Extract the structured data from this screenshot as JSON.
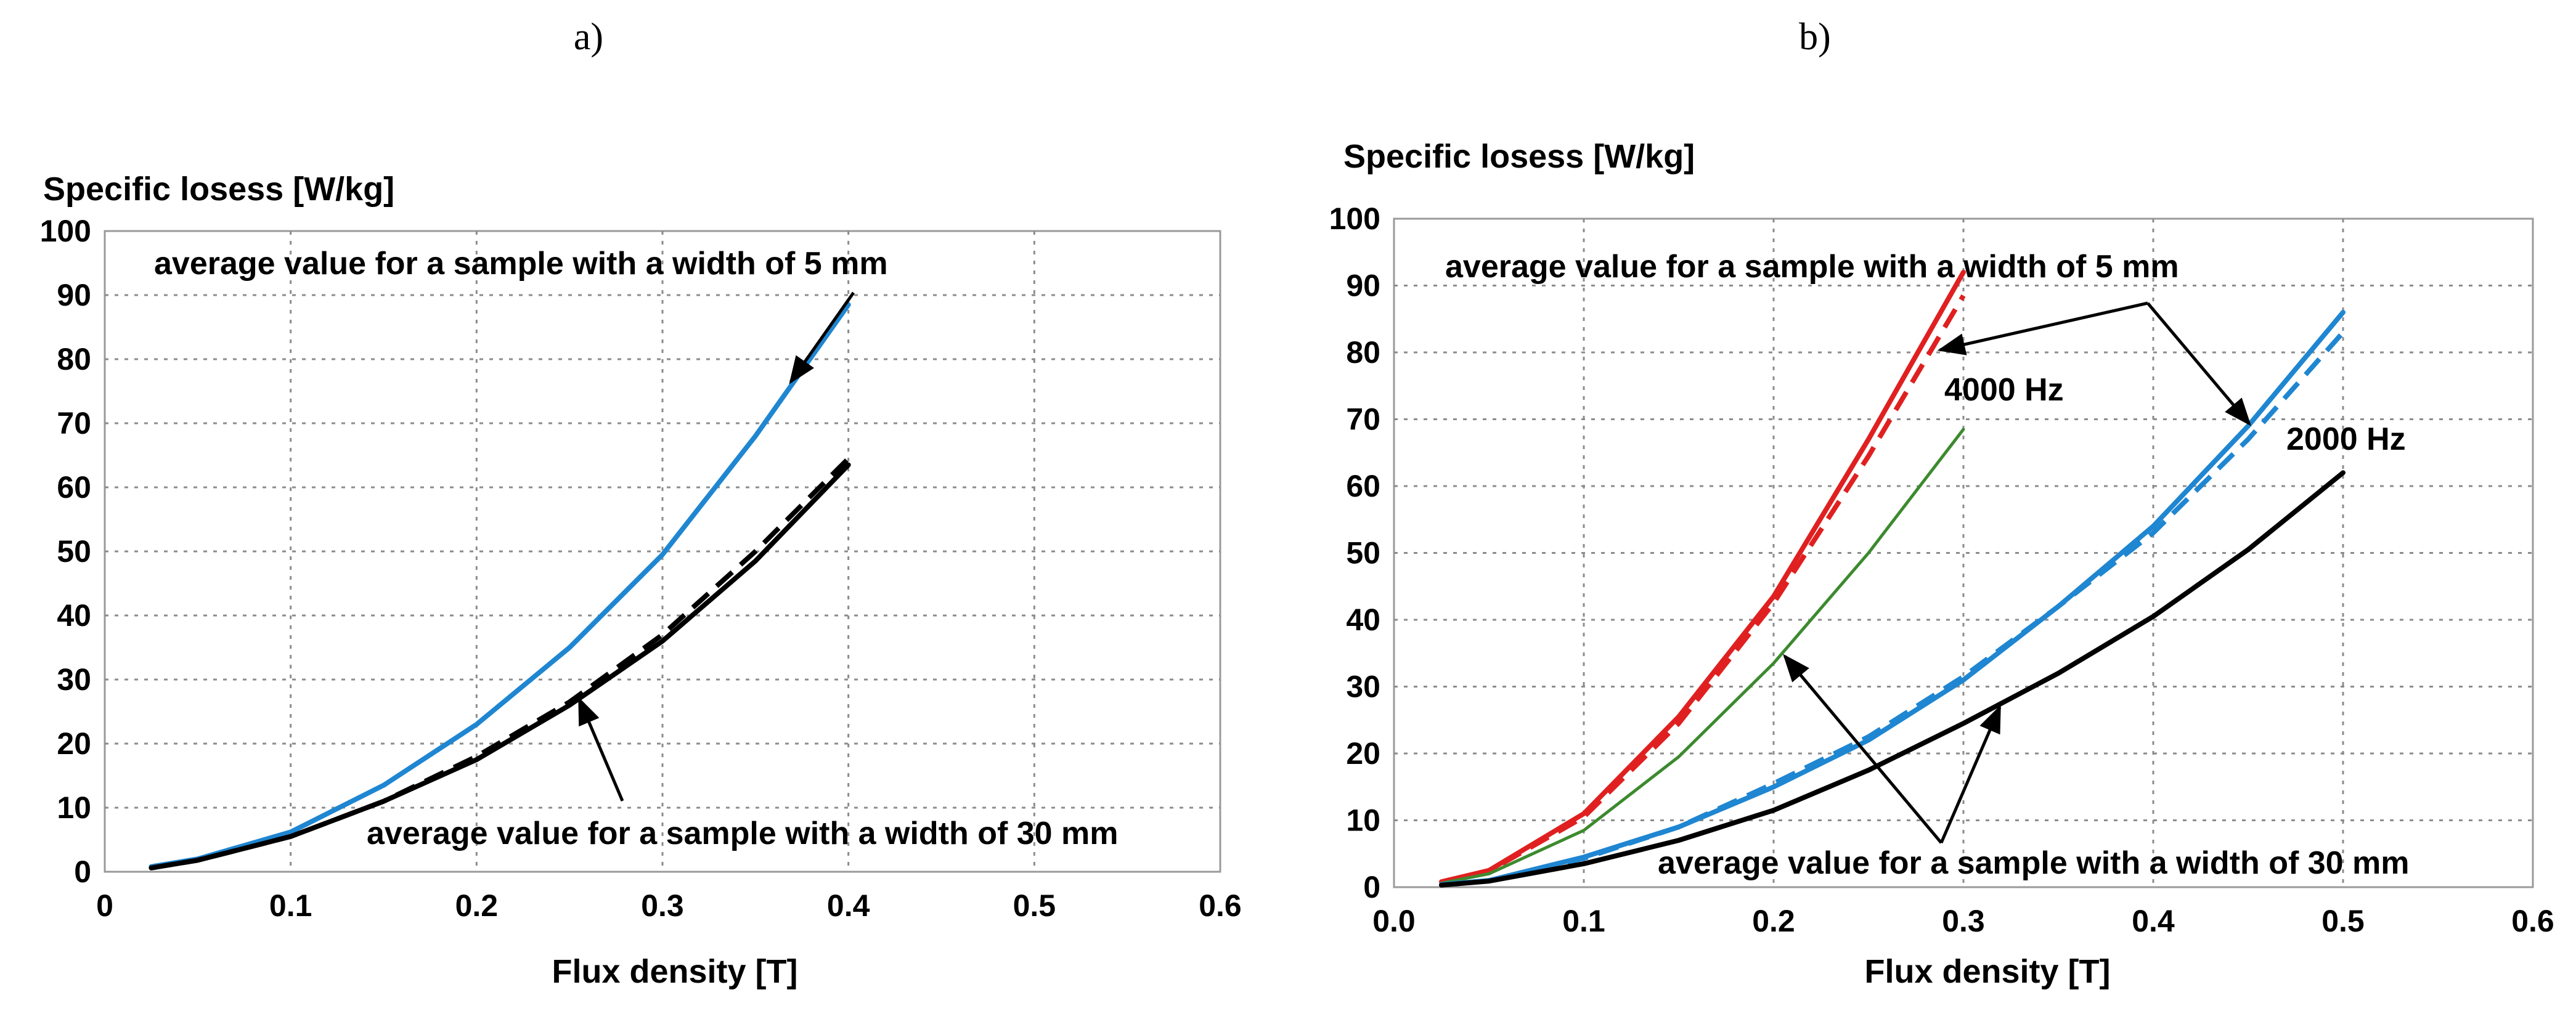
{
  "chart_data": [
    {
      "panel_label": "a)",
      "type": "line",
      "xlabel": "Flux density [T]",
      "ylabel": "Specific losess [W/kg]",
      "xlim": [
        0,
        0.6
      ],
      "ylim": [
        0,
        100
      ],
      "xticks": [
        "0",
        "0.1",
        "0.2",
        "0.3",
        "0.4",
        "0.5",
        "0.6"
      ],
      "yticks": [
        "0",
        "10",
        "20",
        "30",
        "40",
        "50",
        "60",
        "70",
        "80",
        "90",
        "100"
      ],
      "grid": true,
      "series": [
        {
          "color": "#1f86d1",
          "dash": "solid",
          "x": [
            0.025,
            0.05,
            0.1,
            0.15,
            0.2,
            0.25,
            0.3,
            0.35,
            0.4
          ],
          "y": [
            0.8,
            2,
            6.2,
            13.5,
            23,
            35,
            49.5,
            68,
            88.5
          ]
        },
        {
          "color": "#000000",
          "dash": "solid",
          "x": [
            0.025,
            0.05,
            0.1,
            0.15,
            0.2,
            0.25,
            0.3,
            0.35,
            0.4
          ],
          "y": [
            0.6,
            1.8,
            5.5,
            11,
            17.5,
            26,
            36,
            48.5,
            63.5
          ]
        },
        {
          "color": "#000000",
          "dash": "dashed",
          "x": [
            0.025,
            0.05,
            0.1,
            0.15,
            0.2,
            0.25,
            0.3,
            0.35,
            0.4
          ],
          "y": [
            0.6,
            1.8,
            5.5,
            11,
            18,
            26.5,
            37,
            50,
            64.5
          ]
        }
      ],
      "annotations": [
        {
          "text": "average value for a sample with a width of 5 mm"
        },
        {
          "text": "average value for a sample with a width of 30 mm"
        }
      ]
    },
    {
      "panel_label": "b)",
      "type": "line",
      "xlabel": "Flux density [T]",
      "ylabel": "Specific losess [W/kg]",
      "xlim": [
        0,
        0.6
      ],
      "ylim": [
        0,
        100
      ],
      "xticks": [
        "0.0",
        "0.1",
        "0.2",
        "0.3",
        "0.4",
        "0.5",
        "0.6"
      ],
      "yticks": [
        "0",
        "10",
        "20",
        "30",
        "40",
        "50",
        "60",
        "70",
        "80",
        "90",
        "100"
      ],
      "grid": true,
      "series": [
        {
          "color": "#e02020",
          "dash": "solid",
          "x": [
            0.025,
            0.05,
            0.1,
            0.15,
            0.2,
            0.25,
            0.3
          ],
          "y": [
            0.8,
            2.5,
            11,
            25.5,
            43.5,
            67,
            92
          ]
        },
        {
          "color": "#e02020",
          "dash": "dashed",
          "x": [
            0.025,
            0.05,
            0.1,
            0.15,
            0.2,
            0.25,
            0.3
          ],
          "y": [
            0.8,
            2.4,
            10.5,
            24.5,
            42.5,
            64.5,
            88.5
          ]
        },
        {
          "color": "#3c8a2e",
          "dash": "solid",
          "x": [
            0.025,
            0.05,
            0.1,
            0.15,
            0.2,
            0.25,
            0.3
          ],
          "y": [
            0.6,
            2,
            8.5,
            19.5,
            33.5,
            50,
            68.5
          ]
        },
        {
          "color": "#1f86d1",
          "dash": "solid",
          "x": [
            0.025,
            0.05,
            0.1,
            0.15,
            0.2,
            0.25,
            0.3,
            0.35,
            0.4,
            0.45,
            0.5
          ],
          "y": [
            0.4,
            1,
            4.5,
            9,
            15,
            22,
            31,
            42,
            54,
            69,
            86
          ]
        },
        {
          "color": "#1f86d1",
          "dash": "dashed",
          "x": [
            0.025,
            0.05,
            0.1,
            0.15,
            0.2,
            0.25,
            0.3,
            0.35,
            0.4,
            0.45,
            0.5
          ],
          "y": [
            0.4,
            1,
            4.3,
            9,
            15.5,
            22.5,
            31.5,
            42,
            53,
            67,
            83
          ]
        },
        {
          "color": "#000000",
          "dash": "solid",
          "x": [
            0.025,
            0.05,
            0.1,
            0.15,
            0.2,
            0.25,
            0.3,
            0.35,
            0.4,
            0.45,
            0.5
          ],
          "y": [
            0.3,
            0.9,
            3.5,
            7,
            11.5,
            17.5,
            24.5,
            32,
            40.5,
            50.5,
            62
          ]
        }
      ],
      "annotations": [
        {
          "text": "average value for a sample with a width of 5 mm"
        },
        {
          "text": "4000 Hz"
        },
        {
          "text": "2000 Hz"
        },
        {
          "text": "average value for a sample with a width of 30 mm"
        }
      ]
    }
  ]
}
